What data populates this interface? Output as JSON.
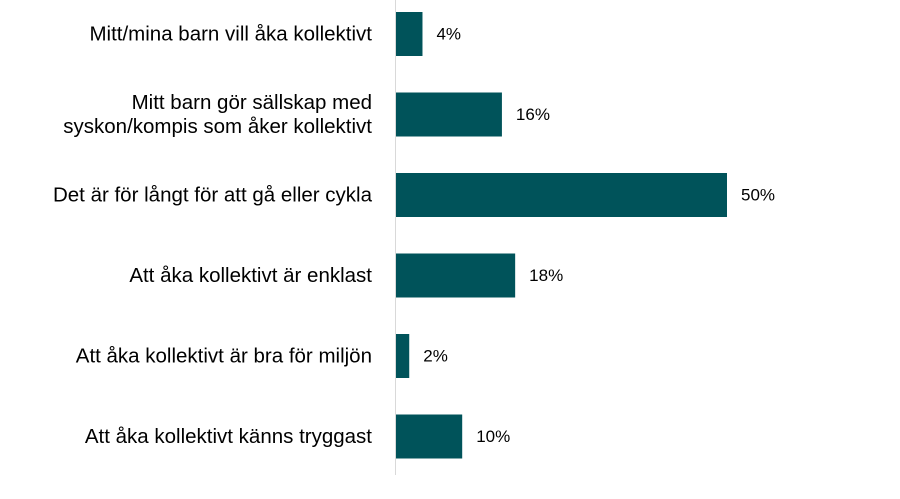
{
  "chart_data": {
    "type": "bar",
    "orientation": "horizontal",
    "categories": [
      [
        "Mitt/mina barn vill åka kollektivt"
      ],
      [
        "Mitt barn gör sällskap med",
        "syskon/kompis som åker kollektivt"
      ],
      [
        "Det är för långt för att gå eller cykla"
      ],
      [
        "Att åka kollektivt är enklast"
      ],
      [
        "Att åka kollektivt är bra för miljön"
      ],
      [
        "Att åka kollektivt känns tryggast"
      ]
    ],
    "values": [
      4,
      16,
      50,
      18,
      2,
      10
    ],
    "value_labels": [
      "4%",
      "16%",
      "50%",
      "18%",
      "2%",
      "10%"
    ],
    "unit": "%",
    "xlim": [
      0,
      60
    ],
    "grid": false,
    "legend": "none",
    "colors": {
      "bar": "#00535A",
      "axis": "#D9D9D9",
      "text": "#000000"
    }
  }
}
